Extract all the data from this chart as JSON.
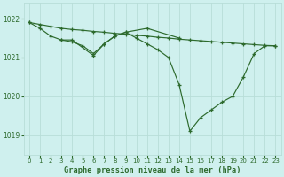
{
  "title": "Graphe pression niveau de la mer (hPa)",
  "bg_color": "#cff0ee",
  "grid_color": "#b8ddd8",
  "line_color": "#2d6a2d",
  "ylim": [
    1018.5,
    1022.4
  ],
  "yticks": [
    1019,
    1020,
    1021,
    1022
  ],
  "xlim": [
    -0.5,
    23.5
  ],
  "xticks": [
    0,
    1,
    2,
    3,
    4,
    5,
    6,
    7,
    8,
    9,
    10,
    11,
    12,
    13,
    14,
    15,
    16,
    17,
    18,
    19,
    20,
    21,
    22,
    23
  ],
  "s1_x": [
    0,
    1,
    2,
    3,
    4,
    5,
    6,
    7,
    8,
    9,
    10,
    11,
    12,
    13,
    14,
    15,
    16,
    17,
    18,
    19,
    20,
    21,
    22,
    23
  ],
  "s1_y": [
    1021.9,
    1021.85,
    1021.8,
    1021.75,
    1021.72,
    1021.7,
    1021.67,
    1021.65,
    1021.62,
    1021.6,
    1021.57,
    1021.55,
    1021.52,
    1021.5,
    1021.47,
    1021.45,
    1021.43,
    1021.41,
    1021.39,
    1021.37,
    1021.35,
    1021.33,
    1021.31,
    1021.3
  ],
  "s2_x": [
    0,
    1,
    2,
    3,
    4,
    6,
    7,
    8,
    9,
    11,
    14
  ],
  "s2_y": [
    1021.9,
    1021.75,
    1021.55,
    1021.45,
    1021.45,
    1021.05,
    1021.35,
    1021.55,
    1021.65,
    1021.75,
    1021.5
  ],
  "s3_x": [
    3,
    4,
    5,
    6,
    7,
    8,
    9,
    10,
    11,
    12,
    13,
    14,
    15,
    16,
    17,
    18,
    19,
    20,
    21,
    22,
    23
  ],
  "s3_y": [
    1021.45,
    1021.4,
    1021.3,
    1021.1,
    1021.35,
    1021.55,
    1021.65,
    1021.5,
    1021.35,
    1021.2,
    1021.0,
    1020.3,
    1019.1,
    1019.45,
    1019.65,
    1019.85,
    1020.0,
    1020.5,
    1021.1,
    1021.3,
    1021.3
  ]
}
